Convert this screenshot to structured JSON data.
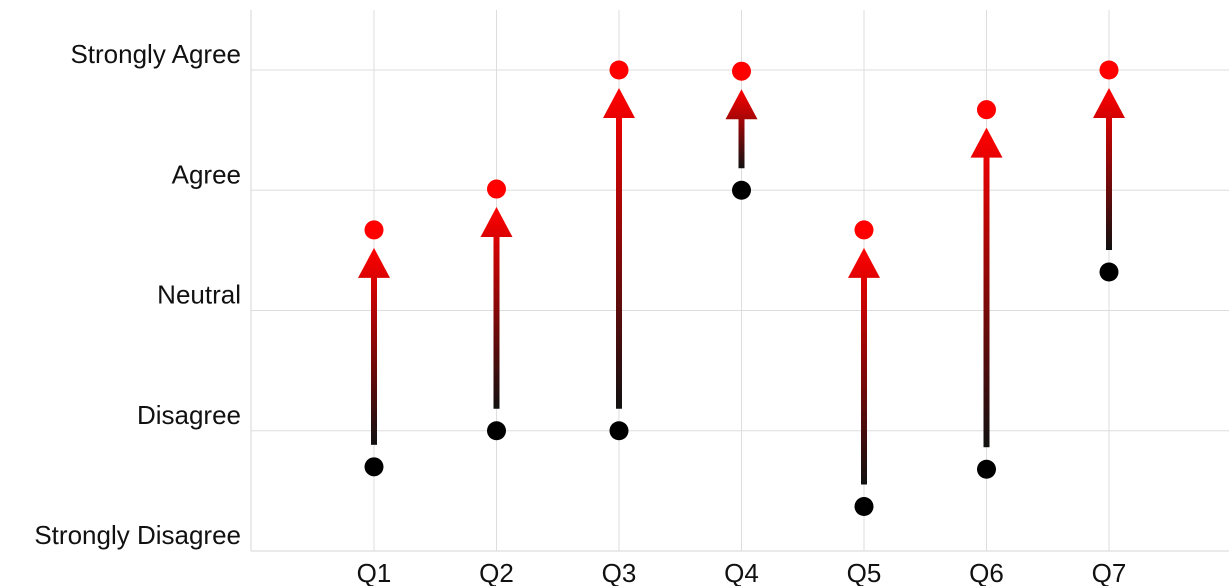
{
  "chart_data": {
    "type": "scatter",
    "y_categories": [
      "Strongly Disagree",
      "Disagree",
      "Neutral",
      "Agree",
      "Strongly Agree"
    ],
    "ylim": [
      1,
      5
    ],
    "categories": [
      "Q1",
      "Q2",
      "Q3",
      "Q4",
      "Q5",
      "Q6",
      "Q7"
    ],
    "series": [
      {
        "values": [
          1.7,
          2.0,
          2.0,
          4.0,
          1.37,
          1.68,
          3.32
        ]
      },
      {
        "values": [
          3.67,
          4.01,
          5.0,
          4.99,
          3.67,
          4.67,
          5.0
        ]
      }
    ],
    "grid": true,
    "colors": {
      "before": "#000000",
      "after": "#ff0000",
      "arrow_start": "#111111",
      "arrow_end": "#ff0000",
      "grid": "#dddddd"
    }
  }
}
